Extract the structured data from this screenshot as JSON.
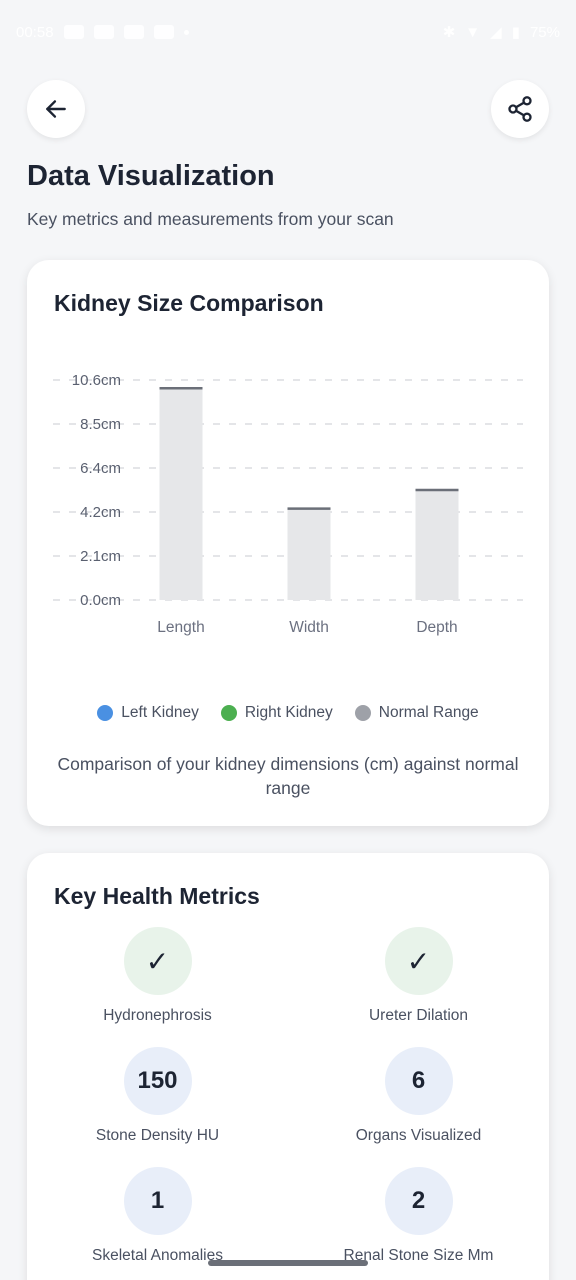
{
  "status_bar": {
    "time": "00:58",
    "battery": "75%"
  },
  "header": {
    "back_icon": "arrow-left-icon",
    "share_icon": "share-icon",
    "title": "Data Visualization",
    "subtitle": "Key metrics and measurements from your scan"
  },
  "chart_card": {
    "title": "Kidney Size Comparison",
    "caption": "Comparison of your kidney dimensions (cm) against normal range",
    "legend": [
      {
        "label": "Left Kidney",
        "color": "#4a90e2"
      },
      {
        "label": "Right Kidney",
        "color": "#4caf50"
      },
      {
        "label": "Normal Range",
        "color": "#9ea1a8"
      }
    ]
  },
  "chart_data": {
    "type": "bar",
    "categories": [
      "Length",
      "Width",
      "Depth"
    ],
    "series": [
      {
        "name": "Normal Range",
        "values": [
          10.2,
          4.4,
          5.3
        ],
        "color": "#e6e7e9"
      }
    ],
    "yticks": [
      "0.0cm",
      "2.1cm",
      "4.2cm",
      "6.4cm",
      "8.5cm",
      "10.6cm"
    ],
    "ylim": [
      0,
      10.6
    ],
    "grid": true,
    "legend_position": "bottom"
  },
  "metrics_card": {
    "title": "Key Health Metrics",
    "items": [
      {
        "label": "Hydronephrosis",
        "value": "✓",
        "kind": "check"
      },
      {
        "label": "Ureter Dilation",
        "value": "✓",
        "kind": "check"
      },
      {
        "label": "Stone Density HU",
        "value": "150",
        "kind": "num"
      },
      {
        "label": "Organs Visualized",
        "value": "6",
        "kind": "num"
      },
      {
        "label": "Skeletal Anomalies",
        "value": "1",
        "kind": "num"
      },
      {
        "label": "Renal Stone Size Mm",
        "value": "2",
        "kind": "num"
      }
    ]
  }
}
